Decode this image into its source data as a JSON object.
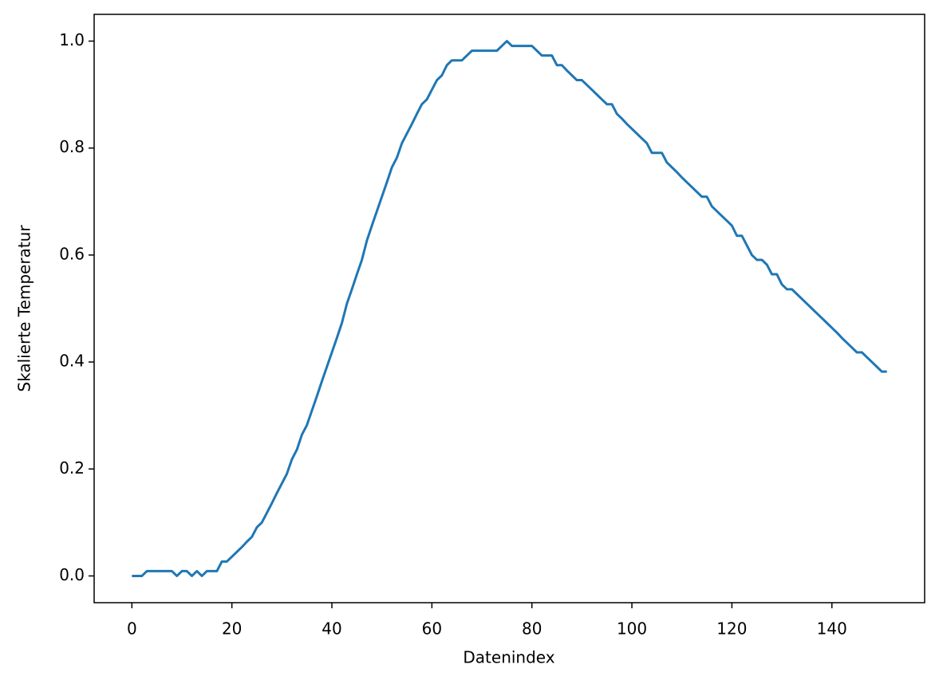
{
  "chart_data": {
    "type": "line",
    "x_label": "Datenindex",
    "y_label": "Skalierte Temperatur",
    "x": [
      0,
      1,
      2,
      3,
      4,
      5,
      6,
      7,
      8,
      9,
      10,
      11,
      12,
      13,
      14,
      15,
      16,
      17,
      18,
      19,
      20,
      21,
      22,
      23,
      24,
      25,
      26,
      27,
      28,
      29,
      30,
      31,
      32,
      33,
      34,
      35,
      36,
      37,
      38,
      39,
      40,
      41,
      42,
      43,
      44,
      45,
      46,
      47,
      48,
      49,
      50,
      51,
      52,
      53,
      54,
      55,
      56,
      57,
      58,
      59,
      60,
      61,
      62,
      63,
      64,
      65,
      66,
      67,
      68,
      69,
      70,
      71,
      72,
      73,
      74,
      75,
      76,
      77,
      78,
      79,
      80,
      81,
      82,
      83,
      84,
      85,
      86,
      87,
      88,
      89,
      90,
      91,
      92,
      93,
      94,
      95,
      96,
      97,
      98,
      99,
      100,
      101,
      102,
      103,
      104,
      105,
      106,
      107,
      108,
      109,
      110,
      111,
      112,
      113,
      114,
      115,
      116,
      117,
      118,
      119,
      120,
      121,
      122,
      123,
      124,
      125,
      126,
      127,
      128,
      129,
      130,
      131,
      132,
      133,
      134,
      135,
      136,
      137,
      138,
      139,
      140,
      141,
      142,
      143,
      144,
      145,
      146,
      147,
      148,
      149,
      150,
      151
    ],
    "series": [
      {
        "name": "Skalierte Temperatur",
        "color": "#1f77b4",
        "values": [
          0,
          0,
          0,
          0.009,
          0.009,
          0.009,
          0.009,
          0.009,
          0.009,
          0,
          0.009,
          0.009,
          0,
          0.009,
          0,
          0.009,
          0.009,
          0.009,
          0.027,
          0.027,
          0.036,
          0.045,
          0.054,
          0.064,
          0.073,
          0.091,
          0.1,
          0.118,
          0.136,
          0.155,
          0.173,
          0.191,
          0.218,
          0.236,
          0.264,
          0.282,
          0.309,
          0.336,
          0.364,
          0.391,
          0.418,
          0.445,
          0.473,
          0.509,
          0.536,
          0.564,
          0.591,
          0.627,
          0.655,
          0.682,
          0.709,
          0.736,
          0.764,
          0.782,
          0.809,
          0.827,
          0.845,
          0.864,
          0.882,
          0.891,
          0.909,
          0.927,
          0.936,
          0.955,
          0.964,
          0.964,
          0.964,
          0.973,
          0.982,
          0.982,
          0.982,
          0.982,
          0.982,
          0.982,
          0.991,
          1.0,
          0.991,
          0.991,
          0.991,
          0.991,
          0.991,
          0.982,
          0.973,
          0.973,
          0.973,
          0.955,
          0.955,
          0.945,
          0.936,
          0.927,
          0.927,
          0.918,
          0.909,
          0.9,
          0.891,
          0.882,
          0.882,
          0.864,
          0.855,
          0.845,
          0.836,
          0.827,
          0.818,
          0.809,
          0.791,
          0.791,
          0.791,
          0.773,
          0.764,
          0.755,
          0.745,
          0.736,
          0.727,
          0.718,
          0.709,
          0.709,
          0.691,
          0.682,
          0.673,
          0.664,
          0.655,
          0.636,
          0.636,
          0.618,
          0.6,
          0.591,
          0.591,
          0.582,
          0.564,
          0.564,
          0.545,
          0.536,
          0.536,
          0.527,
          0.518,
          0.509,
          0.5,
          0.491,
          0.482,
          0.473,
          0.464,
          0.455,
          0.445,
          0.436,
          0.427,
          0.418,
          0.418,
          0.409,
          0.4,
          0.391,
          0.382,
          0.382
        ]
      }
    ],
    "xlim": [
      -7.55,
      158.55
    ],
    "ylim": [
      -0.05,
      1.05
    ],
    "xticks": [
      0,
      20,
      40,
      60,
      80,
      100,
      120,
      140
    ],
    "yticks": [
      {
        "value": 0,
        "label": "0.0"
      },
      0.2,
      0.4,
      0.6,
      0.8,
      {
        "value": 1,
        "label": "1.0"
      }
    ]
  }
}
